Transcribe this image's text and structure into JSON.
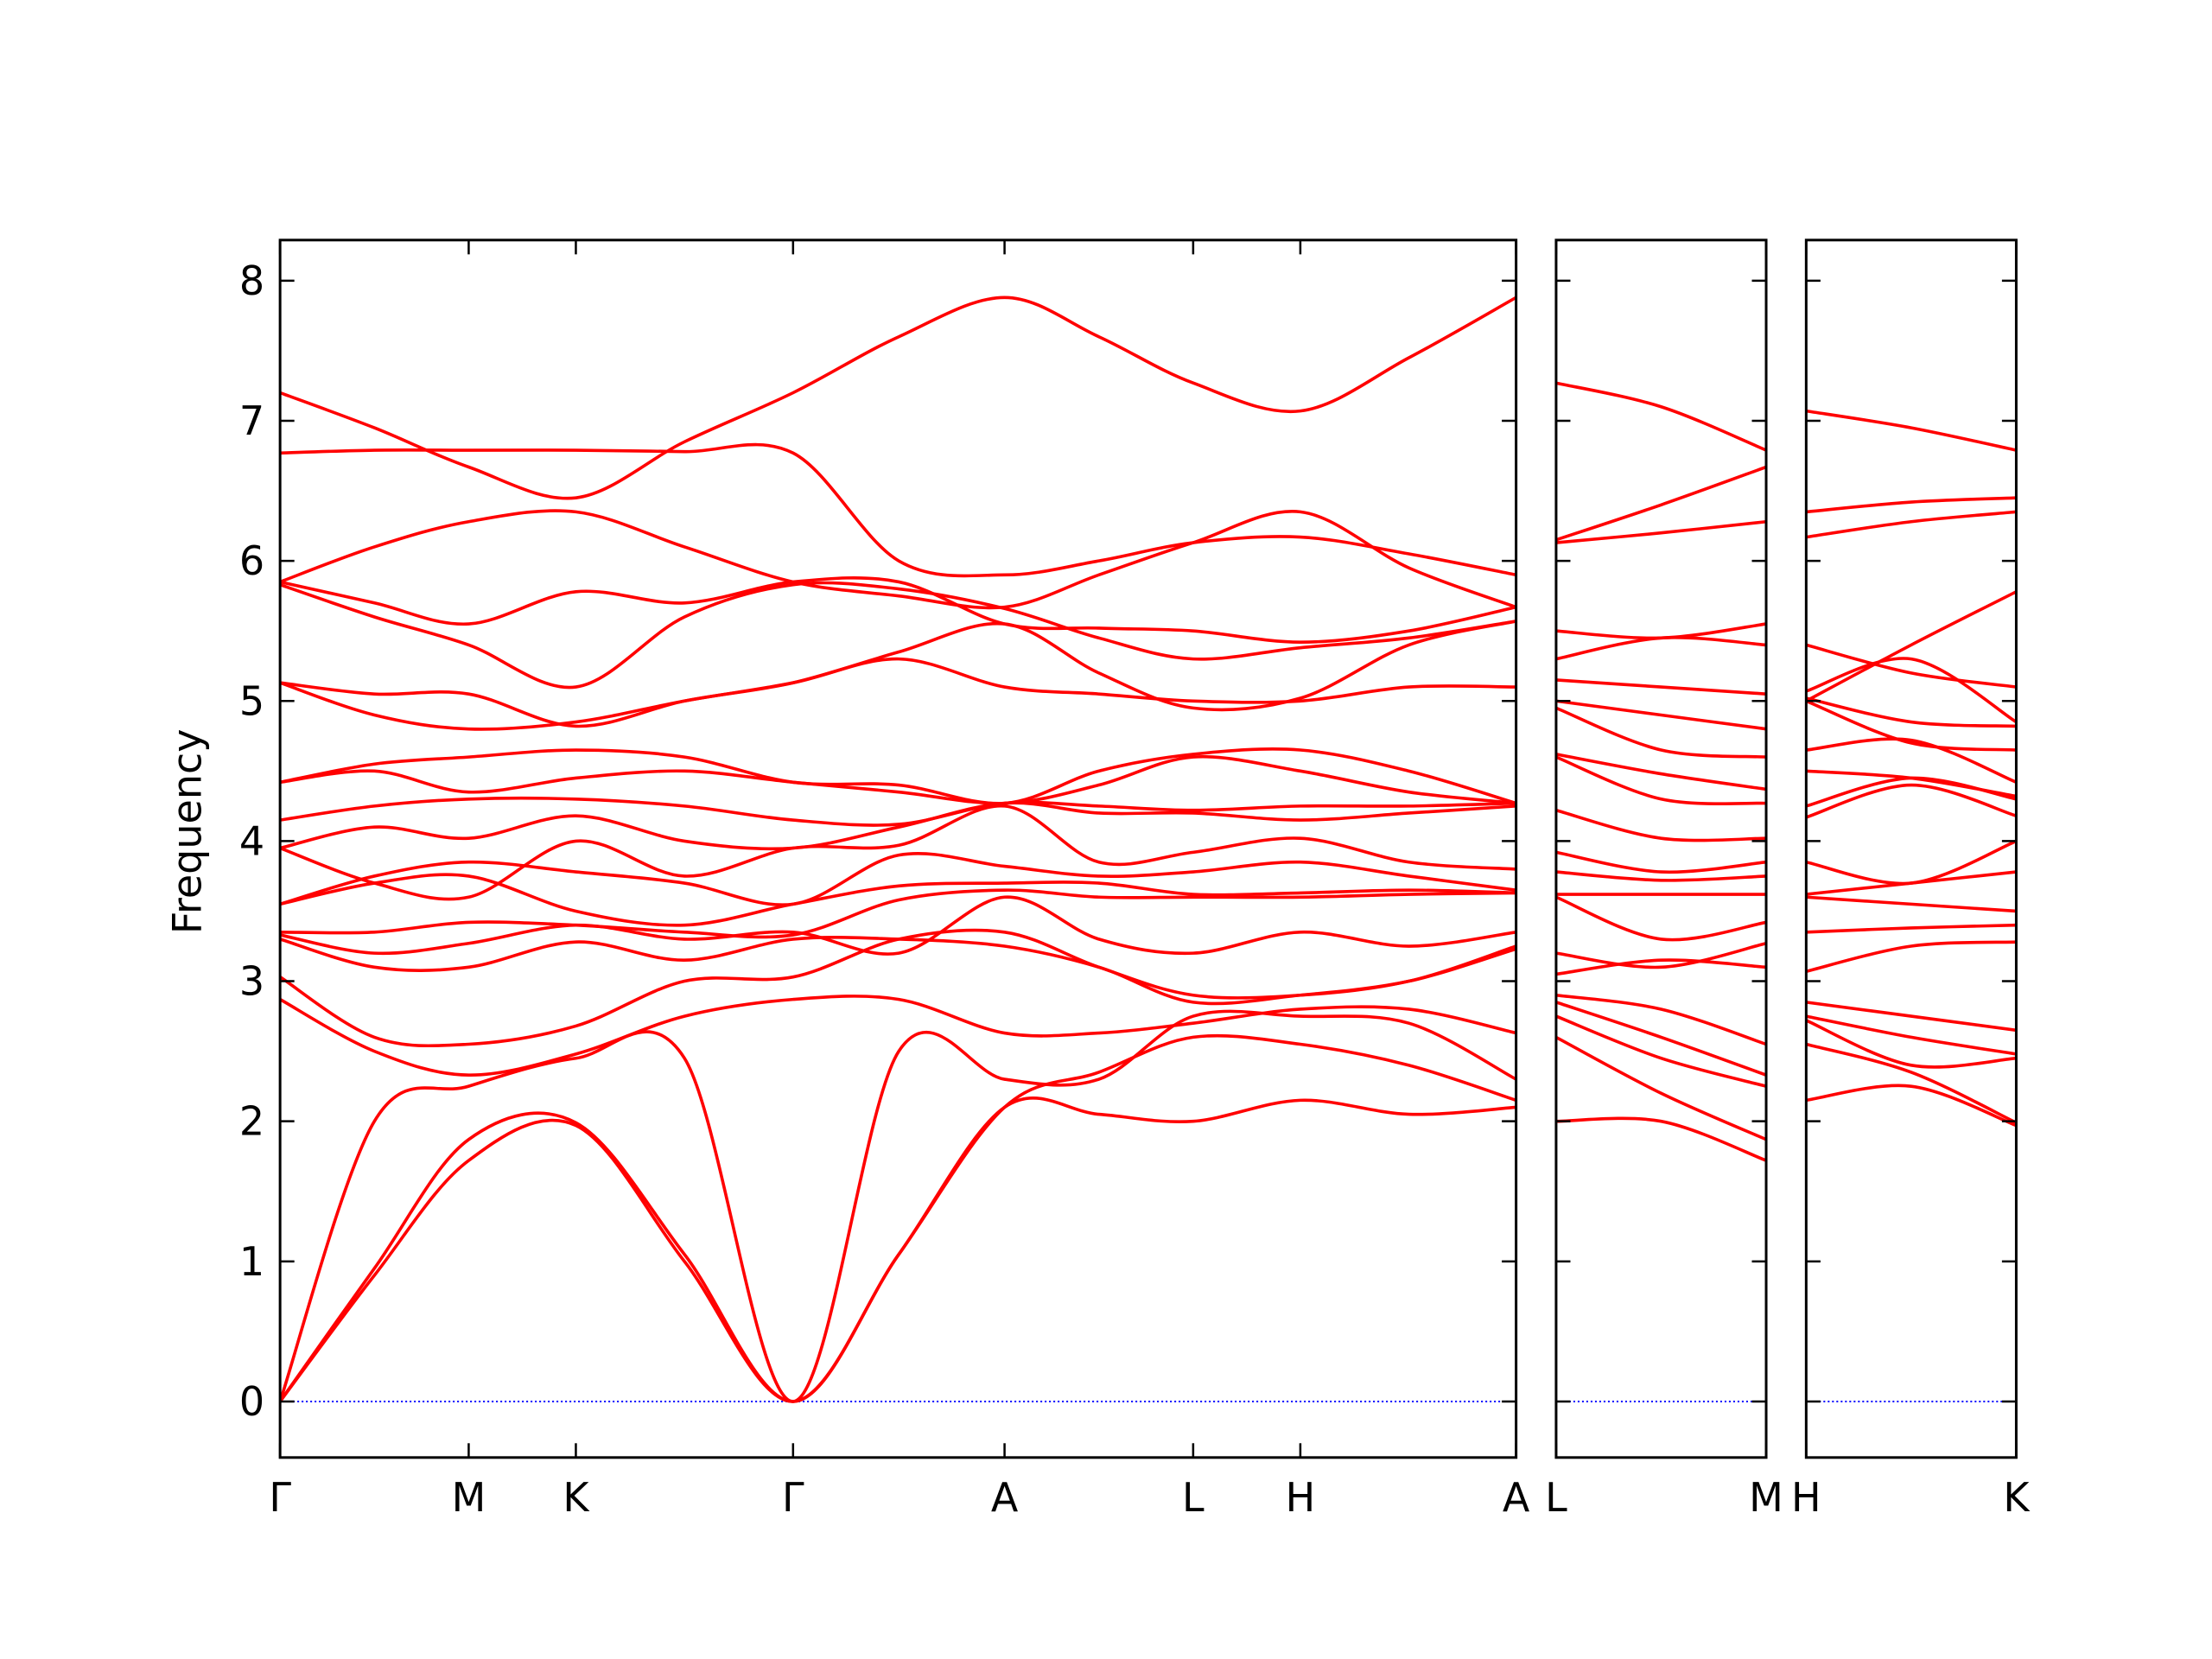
{
  "chart_data": [
    {
      "type": "band",
      "ylabel": "Frequency",
      "color": "#ff0000",
      "xlim": [
        0,
        8.65
      ],
      "ylim": [
        -0.4,
        8.29
      ],
      "xticks": [
        {
          "value": 0,
          "label": "Γ"
        },
        {
          "value": 1.32,
          "label": "M"
        },
        {
          "value": 2.07,
          "label": "K"
        },
        {
          "value": 3.59,
          "label": "Γ"
        },
        {
          "value": 5.07,
          "label": "A"
        },
        {
          "value": 6.39,
          "label": "L"
        },
        {
          "value": 7.14,
          "label": "H"
        },
        {
          "value": 8.65,
          "label": "A"
        }
      ],
      "yticks": [
        0,
        1,
        2,
        3,
        4,
        5,
        6,
        7,
        8
      ],
      "reference_line": 0,
      "reference_color": "#0000ff",
      "x": [
        0,
        0.66,
        1.32,
        2.07,
        2.83,
        3.59,
        4.33,
        5.07,
        5.73,
        6.39,
        7.14,
        7.9,
        8.65
      ],
      "bands": [
        [
          0,
          0.9,
          1.72,
          1.97,
          1.0,
          0,
          1.05,
          2.1,
          2.05,
          2.0,
          2.15,
          2.05,
          2.1
        ],
        [
          0,
          0.95,
          1.87,
          1.99,
          1.05,
          0,
          1.05,
          2.1,
          2.35,
          2.6,
          2.55,
          2.4,
          2.15
        ],
        [
          0,
          2.0,
          2.25,
          2.45,
          2.45,
          0,
          2.5,
          2.3,
          2.3,
          2.75,
          2.75,
          2.7,
          2.3
        ],
        [
          2.87,
          2.5,
          2.33,
          2.48,
          2.75,
          2.87,
          2.87,
          2.63,
          2.63,
          2.7,
          2.8,
          2.8,
          2.63
        ],
        [
          3.03,
          2.6,
          2.55,
          2.68,
          3.0,
          3.03,
          3.3,
          3.35,
          3.1,
          2.9,
          2.9,
          3.0,
          3.25
        ],
        [
          3.3,
          3.1,
          3.1,
          3.28,
          3.15,
          3.3,
          3.3,
          3.25,
          3.1,
          2.85,
          2.9,
          3.0,
          3.23
        ],
        [
          3.33,
          3.2,
          3.27,
          3.4,
          3.3,
          3.35,
          3.2,
          3.6,
          3.3,
          3.2,
          3.35,
          3.25,
          3.35
        ],
        [
          3.35,
          3.35,
          3.42,
          3.4,
          3.35,
          3.33,
          3.58,
          3.65,
          3.6,
          3.6,
          3.6,
          3.62,
          3.63
        ],
        [
          3.55,
          3.7,
          3.75,
          3.5,
          3.4,
          3.55,
          3.68,
          3.7,
          3.7,
          3.62,
          3.63,
          3.65,
          3.63
        ],
        [
          3.55,
          3.75,
          3.85,
          3.78,
          3.7,
          3.55,
          3.9,
          3.82,
          3.75,
          3.78,
          3.85,
          3.75,
          3.65
        ],
        [
          3.95,
          3.7,
          3.6,
          4.0,
          3.75,
          3.95,
          3.97,
          4.25,
          3.85,
          3.92,
          4.02,
          3.85,
          3.8
        ],
        [
          3.95,
          4.1,
          4.02,
          4.18,
          4.0,
          3.95,
          4.1,
          4.27,
          4.2,
          4.2,
          4.15,
          4.2,
          4.25
        ],
        [
          4.15,
          4.25,
          4.3,
          4.3,
          4.25,
          4.15,
          4.12,
          4.27,
          4.25,
          4.22,
          4.25,
          4.25,
          4.27
        ],
        [
          4.42,
          4.5,
          4.35,
          4.45,
          4.5,
          4.42,
          4.35,
          4.27,
          4.4,
          4.6,
          4.5,
          4.35,
          4.27
        ],
        [
          4.42,
          4.55,
          4.6,
          4.65,
          4.6,
          4.42,
          4.4,
          4.27,
          4.5,
          4.62,
          4.65,
          4.5,
          4.27
        ],
        [
          5.13,
          4.9,
          4.8,
          4.85,
          5.0,
          5.13,
          5.3,
          5.1,
          5.05,
          5.0,
          5.0,
          5.1,
          5.1
        ],
        [
          5.13,
          5.05,
          5.05,
          4.82,
          5.0,
          5.13,
          5.35,
          5.55,
          5.2,
          4.95,
          5.02,
          5.4,
          5.57
        ],
        [
          5.83,
          5.6,
          5.4,
          5.1,
          5.6,
          5.83,
          5.8,
          5.66,
          5.45,
          5.3,
          5.38,
          5.45,
          5.57
        ],
        [
          5.85,
          5.7,
          5.55,
          5.78,
          5.7,
          5.85,
          5.85,
          5.55,
          5.52,
          5.5,
          5.42,
          5.5,
          5.67
        ],
        [
          5.85,
          6.1,
          6.28,
          6.35,
          6.1,
          5.85,
          5.75,
          5.67,
          5.9,
          6.13,
          6.35,
          5.95,
          5.67
        ],
        [
          6.77,
          6.79,
          6.79,
          6.79,
          6.78,
          6.77,
          6.0,
          5.9,
          6.0,
          6.13,
          6.17,
          6.05,
          5.9
        ],
        [
          7.2,
          6.95,
          6.67,
          6.45,
          6.85,
          7.2,
          7.6,
          7.88,
          7.6,
          7.27,
          7.07,
          7.45,
          7.88
        ]
      ]
    },
    {
      "type": "band",
      "color": "#ff0000",
      "xlim": [
        0,
        1.47
      ],
      "ylim": [
        -0.4,
        8.29
      ],
      "xticks": [
        {
          "value": 0,
          "label": "L"
        },
        {
          "value": 1.47,
          "label": "M"
        }
      ],
      "yticks": [
        0,
        1,
        2,
        3,
        4,
        5,
        6,
        7,
        8
      ],
      "reference_line": 0,
      "reference_color": "#0000ff",
      "x": [
        0,
        0.735,
        1.47
      ],
      "bands": [
        [
          2.0,
          2.0,
          1.72
        ],
        [
          2.6,
          2.2,
          1.87
        ],
        [
          2.75,
          2.45,
          2.25
        ],
        [
          2.85,
          2.6,
          2.33
        ],
        [
          2.9,
          2.8,
          2.55
        ],
        [
          3.05,
          3.15,
          3.1
        ],
        [
          3.2,
          3.1,
          3.27
        ],
        [
          3.6,
          3.3,
          3.42
        ],
        [
          3.62,
          3.62,
          3.62
        ],
        [
          3.78,
          3.72,
          3.75
        ],
        [
          3.92,
          3.78,
          3.85
        ],
        [
          4.22,
          4.02,
          4.02
        ],
        [
          4.6,
          4.3,
          4.27
        ],
        [
          4.62,
          4.48,
          4.37
        ],
        [
          4.95,
          4.65,
          4.6
        ],
        [
          5.0,
          4.9,
          4.8
        ],
        [
          5.15,
          5.1,
          5.05
        ],
        [
          5.3,
          5.45,
          5.4
        ],
        [
          5.5,
          5.45,
          5.55
        ],
        [
          6.13,
          6.2,
          6.28
        ],
        [
          6.15,
          6.4,
          6.67
        ],
        [
          7.27,
          7.1,
          6.79
        ]
      ]
    },
    {
      "type": "band",
      "color": "#ff0000",
      "xlim": [
        0,
        1.47
      ],
      "ylim": [
        -0.4,
        8.29
      ],
      "xticks": [
        {
          "value": 0,
          "label": "H"
        },
        {
          "value": 1.47,
          "label": "K"
        }
      ],
      "yticks": [
        0,
        1,
        2,
        3,
        4,
        5,
        6,
        7,
        8
      ],
      "reference_line": 0,
      "reference_color": "#0000ff",
      "x": [
        0,
        0.735,
        1.47
      ],
      "bands": [
        [
          2.15,
          2.25,
          1.97
        ],
        [
          2.55,
          2.35,
          1.99
        ],
        [
          2.72,
          2.4,
          2.45
        ],
        [
          2.75,
          2.6,
          2.48
        ],
        [
          2.85,
          2.75,
          2.65
        ],
        [
          3.07,
          3.25,
          3.28
        ],
        [
          3.35,
          3.38,
          3.4
        ],
        [
          3.6,
          3.55,
          3.5
        ],
        [
          3.62,
          3.7,
          3.78
        ],
        [
          3.85,
          3.7,
          4.0
        ],
        [
          4.17,
          4.4,
          4.18
        ],
        [
          4.25,
          4.45,
          4.3
        ],
        [
          4.5,
          4.45,
          4.32
        ],
        [
          4.65,
          4.72,
          4.42
        ],
        [
          5.0,
          4.7,
          4.65
        ],
        [
          5.02,
          4.85,
          4.82
        ],
        [
          5.07,
          5.3,
          4.85
        ],
        [
          5.4,
          5.2,
          5.1
        ],
        [
          5.0,
          5.4,
          5.78
        ],
        [
          6.17,
          6.28,
          6.35
        ],
        [
          6.35,
          6.42,
          6.45
        ],
        [
          7.07,
          6.95,
          6.79
        ]
      ]
    }
  ]
}
